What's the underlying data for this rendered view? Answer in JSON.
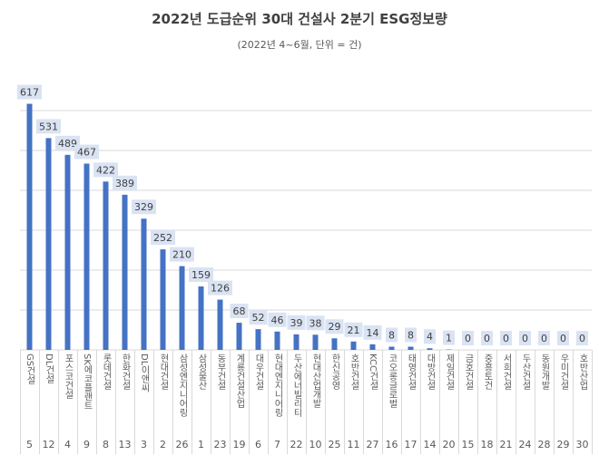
{
  "chart_data": {
    "type": "bar",
    "title": "2022년 도급순위 30대 건설사 2분기 ESG정보량",
    "subtitle": "(2022년 4~6월, 단위 = 건)",
    "categories": [
      "GS건설",
      "DL건설",
      "포스코건설",
      "SK에코플랜트",
      "롯데건설",
      "한화건설",
      "DL이앤씨",
      "현대건설",
      "삼성엔지니어링",
      "삼성물산",
      "동부건설",
      "계룡건설산업",
      "대우건설",
      "현대엔지니어링",
      "두산에너빌리티",
      "현대산업개발",
      "한신공영",
      "호반건설",
      "KCC건설",
      "코오롱글로벌",
      "태영건설",
      "대방건설",
      "제일건설",
      "금호건설",
      "중흥토건",
      "서희건설",
      "두산건설",
      "동원개발",
      "우미건설",
      "호반산업"
    ],
    "ranks": [
      "5",
      "12",
      "4",
      "9",
      "8",
      "13",
      "3",
      "2",
      "26",
      "1",
      "23",
      "19",
      "6",
      "7",
      "22",
      "10",
      "25",
      "11",
      "27",
      "16",
      "17",
      "14",
      "20",
      "15",
      "18",
      "21",
      "24",
      "28",
      "29",
      "30"
    ],
    "values": [
      617,
      531,
      489,
      467,
      422,
      389,
      329,
      252,
      210,
      159,
      126,
      68,
      52,
      46,
      39,
      38,
      29,
      21,
      14,
      8,
      8,
      4,
      1,
      0,
      0,
      0,
      0,
      0,
      0,
      0
    ],
    "ylim": [
      0,
      600
    ],
    "grid": true,
    "bar_color": "#4472C4",
    "label_bg": "#DAE3F3"
  }
}
